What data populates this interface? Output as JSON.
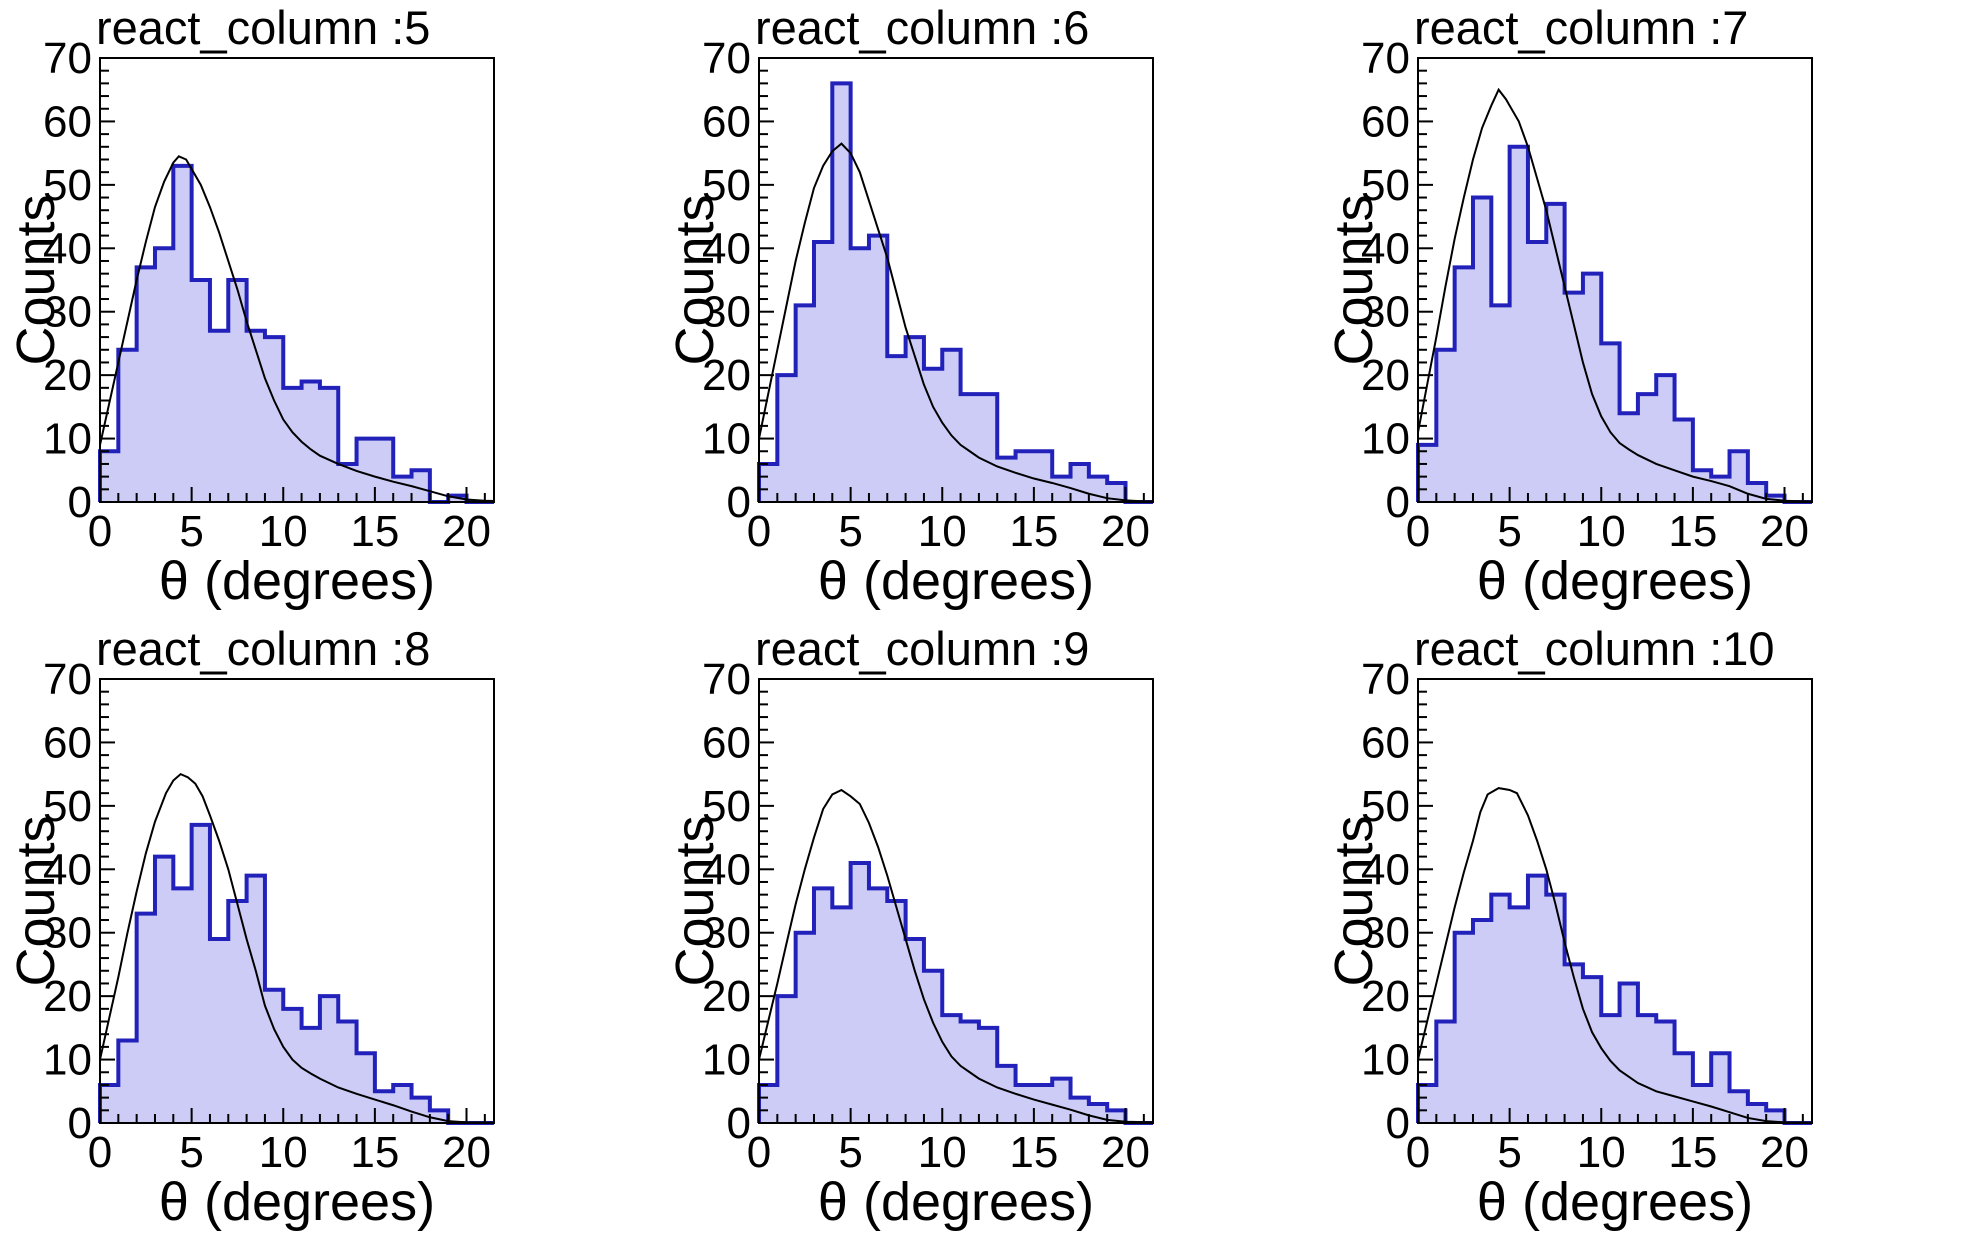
{
  "figure": {
    "description": "Grid of six angular-distribution histograms with overlaid simulation curves",
    "background": "#ffffff",
    "rows": 2,
    "cols": 3
  },
  "styles": {
    "hist_fill": "#ccccf6",
    "hist_stroke": "#2222bb",
    "curve_color": "#000000",
    "frame_color": "#000000",
    "text_color": "#000000"
  },
  "axes": {
    "x_label": "θ (degrees)",
    "y_label": "Counts",
    "x_ticks": [
      0,
      5,
      10,
      15,
      20
    ],
    "x_minor_step": 1,
    "x_range": [
      0,
      21.5
    ],
    "y_ticks": [
      0,
      10,
      20,
      30,
      40,
      50,
      60,
      70
    ],
    "y_minor_step": 2,
    "y_range": [
      0,
      70
    ],
    "grid": false
  },
  "chart_data": [
    {
      "type": "bar",
      "title": "react_column :5",
      "xlabel": "θ (degrees)",
      "ylabel": "Counts",
      "ylim": [
        0,
        70
      ],
      "bin_start": 0,
      "bin_width": 1,
      "values": [
        8,
        24,
        37,
        40,
        53,
        35,
        27,
        35,
        27,
        26,
        18,
        19,
        18,
        6,
        10,
        10,
        4,
        5,
        0,
        1,
        0
      ],
      "curve": [
        [
          0,
          9
        ],
        [
          0.5,
          15.5
        ],
        [
          1,
          22
        ],
        [
          1.5,
          28.5
        ],
        [
          2,
          35
        ],
        [
          2.5,
          41
        ],
        [
          3,
          46.5
        ],
        [
          3.5,
          50.5
        ],
        [
          4,
          53.5
        ],
        [
          4.3,
          54.5
        ],
        [
          4.7,
          54
        ],
        [
          5,
          52.5
        ],
        [
          5.5,
          50
        ],
        [
          6,
          46.5
        ],
        [
          6.5,
          42.5
        ],
        [
          7,
          38
        ],
        [
          7.5,
          33.5
        ],
        [
          8,
          28.5
        ],
        [
          8.5,
          24
        ],
        [
          9,
          19.5
        ],
        [
          9.5,
          16
        ],
        [
          10,
          13
        ],
        [
          10.5,
          11
        ],
        [
          11,
          9.5
        ],
        [
          11.5,
          8.3
        ],
        [
          12,
          7.3
        ],
        [
          13,
          6
        ],
        [
          14,
          4.9
        ],
        [
          15,
          4
        ],
        [
          16,
          3.2
        ],
        [
          17,
          2.5
        ],
        [
          18,
          1.7
        ],
        [
          19,
          0.9
        ],
        [
          20,
          0.4
        ],
        [
          21,
          0.2
        ],
        [
          21.5,
          0.15
        ]
      ]
    },
    {
      "type": "bar",
      "title": "react_column :6",
      "xlabel": "θ (degrees)",
      "ylabel": "Counts",
      "ylim": [
        0,
        70
      ],
      "bin_start": 0,
      "bin_width": 1,
      "values": [
        6,
        20,
        31,
        41,
        66,
        40,
        42,
        23,
        26,
        21,
        24,
        17,
        17,
        7,
        8,
        8,
        4,
        6,
        4,
        3,
        0
      ],
      "curve": [
        [
          0,
          10
        ],
        [
          0.5,
          17
        ],
        [
          1,
          24
        ],
        [
          1.5,
          31
        ],
        [
          2,
          38
        ],
        [
          2.5,
          44
        ],
        [
          3,
          49.5
        ],
        [
          3.5,
          53
        ],
        [
          4,
          55.3
        ],
        [
          4.5,
          56.5
        ],
        [
          5,
          55
        ],
        [
          5.5,
          52
        ],
        [
          6,
          47.5
        ],
        [
          6.5,
          43
        ],
        [
          7,
          38.5
        ],
        [
          7.5,
          33
        ],
        [
          8,
          27.5
        ],
        [
          8.5,
          23
        ],
        [
          9,
          18.5
        ],
        [
          9.5,
          15
        ],
        [
          10,
          12.5
        ],
        [
          10.5,
          10.5
        ],
        [
          11,
          9
        ],
        [
          11.5,
          8
        ],
        [
          12,
          7
        ],
        [
          13,
          5.6
        ],
        [
          14,
          4.6
        ],
        [
          15,
          3.7
        ],
        [
          16,
          3
        ],
        [
          17,
          2.2
        ],
        [
          18,
          1.3
        ],
        [
          19,
          0.6
        ],
        [
          20,
          0.25
        ],
        [
          21,
          0.1
        ],
        [
          21.5,
          0.1
        ]
      ]
    },
    {
      "type": "bar",
      "title": "react_column :7",
      "xlabel": "θ (degrees)",
      "ylabel": "Counts",
      "ylim": [
        0,
        70
      ],
      "bin_start": 0,
      "bin_width": 1,
      "values": [
        9,
        24,
        37,
        48,
        31,
        56,
        41,
        47,
        33,
        36,
        25,
        14,
        17,
        20,
        13,
        5,
        4,
        8,
        3,
        1,
        0
      ],
      "curve": [
        [
          0,
          11
        ],
        [
          0.5,
          18.5
        ],
        [
          1,
          26
        ],
        [
          1.5,
          34
        ],
        [
          2,
          41.5
        ],
        [
          2.5,
          48
        ],
        [
          3,
          54
        ],
        [
          3.5,
          59
        ],
        [
          4,
          62.5
        ],
        [
          4.4,
          65
        ],
        [
          4.8,
          63.5
        ],
        [
          5,
          62.5
        ],
        [
          5.5,
          60
        ],
        [
          6,
          56
        ],
        [
          6.5,
          51
        ],
        [
          7,
          46
        ],
        [
          7.5,
          40
        ],
        [
          8,
          34
        ],
        [
          8.5,
          28
        ],
        [
          9,
          22
        ],
        [
          9.5,
          17
        ],
        [
          10,
          13.5
        ],
        [
          10.5,
          11
        ],
        [
          11,
          9.3
        ],
        [
          11.5,
          8.3
        ],
        [
          12,
          7.4
        ],
        [
          13,
          6
        ],
        [
          14,
          5
        ],
        [
          15,
          4
        ],
        [
          16,
          3.3
        ],
        [
          17,
          2.5
        ],
        [
          18,
          1.3
        ],
        [
          19,
          0.5
        ],
        [
          20,
          0.2
        ],
        [
          21,
          0.1
        ],
        [
          21.5,
          0.1
        ]
      ]
    },
    {
      "type": "bar",
      "title": "react_column :8",
      "xlabel": "θ (degrees)",
      "ylabel": "Counts",
      "ylim": [
        0,
        70
      ],
      "bin_start": 0,
      "bin_width": 1,
      "values": [
        6,
        13,
        33,
        42,
        37,
        47,
        29,
        35,
        39,
        21,
        18,
        15,
        20,
        16,
        11,
        5,
        6,
        4,
        2,
        0,
        0
      ],
      "curve": [
        [
          0,
          10
        ],
        [
          0.5,
          16.5
        ],
        [
          1,
          23
        ],
        [
          1.5,
          30
        ],
        [
          2,
          36.5
        ],
        [
          2.5,
          42.5
        ],
        [
          3,
          47.5
        ],
        [
          3.6,
          52
        ],
        [
          4,
          54
        ],
        [
          4.4,
          55
        ],
        [
          4.8,
          54.5
        ],
        [
          5.2,
          53.5
        ],
        [
          5.6,
          51.5
        ],
        [
          6,
          48.5
        ],
        [
          6.5,
          44.5
        ],
        [
          7,
          40
        ],
        [
          7.5,
          34.5
        ],
        [
          8,
          29
        ],
        [
          8.5,
          24
        ],
        [
          9,
          18.5
        ],
        [
          9.5,
          14.8
        ],
        [
          10,
          12
        ],
        [
          10.5,
          10
        ],
        [
          11,
          8.7
        ],
        [
          11.5,
          7.8
        ],
        [
          12,
          7
        ],
        [
          13,
          5.6
        ],
        [
          14,
          4.6
        ],
        [
          15,
          3.7
        ],
        [
          16,
          2.8
        ],
        [
          17,
          1.8
        ],
        [
          18,
          0.9
        ],
        [
          19,
          0.3
        ],
        [
          20,
          0.1
        ],
        [
          21.5,
          0.05
        ]
      ]
    },
    {
      "type": "bar",
      "title": "react_column :9",
      "xlabel": "θ (degrees)",
      "ylabel": "Counts",
      "ylim": [
        0,
        70
      ],
      "bin_start": 0,
      "bin_width": 1,
      "values": [
        6,
        20,
        30,
        37,
        34,
        41,
        37,
        35,
        29,
        24,
        17,
        16,
        15,
        9,
        6,
        6,
        7,
        4,
        3,
        2,
        0
      ],
      "curve": [
        [
          0,
          10
        ],
        [
          0.5,
          16
        ],
        [
          1,
          22
        ],
        [
          1.5,
          28.3
        ],
        [
          2,
          34.5
        ],
        [
          2.5,
          40
        ],
        [
          3,
          45
        ],
        [
          3.5,
          49.5
        ],
        [
          4,
          51.8
        ],
        [
          4.5,
          52.5
        ],
        [
          5,
          51.5
        ],
        [
          5.5,
          50.3
        ],
        [
          6,
          47.3
        ],
        [
          6.5,
          43.5
        ],
        [
          7,
          39
        ],
        [
          7.5,
          34
        ],
        [
          8,
          29
        ],
        [
          8.5,
          24
        ],
        [
          9,
          19.5
        ],
        [
          9.5,
          15.8
        ],
        [
          10,
          12.8
        ],
        [
          10.5,
          10.5
        ],
        [
          11,
          9
        ],
        [
          11.5,
          8
        ],
        [
          12,
          7
        ],
        [
          13,
          5.6
        ],
        [
          14,
          4.6
        ],
        [
          15,
          3.7
        ],
        [
          16,
          2.9
        ],
        [
          17,
          2.1
        ],
        [
          18,
          1.2
        ],
        [
          19,
          0.5
        ],
        [
          20,
          0.2
        ],
        [
          21.5,
          0.1
        ]
      ]
    },
    {
      "type": "bar",
      "title": "react_column :10",
      "xlabel": "θ (degrees)",
      "ylabel": "Counts",
      "ylim": [
        0,
        70
      ],
      "bin_start": 0,
      "bin_width": 1,
      "values": [
        6,
        16,
        30,
        32,
        36,
        34,
        39,
        36,
        25,
        23,
        17,
        22,
        17,
        16,
        11,
        6,
        11,
        5,
        3,
        2,
        0
      ],
      "curve": [
        [
          0,
          10
        ],
        [
          0.5,
          16
        ],
        [
          1,
          22
        ],
        [
          1.5,
          28
        ],
        [
          2,
          34
        ],
        [
          2.5,
          39.5
        ],
        [
          3,
          44.5
        ],
        [
          3.4,
          49
        ],
        [
          3.8,
          51.8
        ],
        [
          4.4,
          52.8
        ],
        [
          5,
          52.5
        ],
        [
          5.4,
          52
        ],
        [
          6,
          48.5
        ],
        [
          6.5,
          44.5
        ],
        [
          7,
          40
        ],
        [
          7.5,
          34.5
        ],
        [
          8,
          28.5
        ],
        [
          8.5,
          23
        ],
        [
          9,
          18
        ],
        [
          9.5,
          14.3
        ],
        [
          10,
          11.8
        ],
        [
          10.5,
          9.8
        ],
        [
          11,
          8.3
        ],
        [
          12,
          6.3
        ],
        [
          13,
          5
        ],
        [
          14,
          4.2
        ],
        [
          15,
          3.4
        ],
        [
          16,
          2.6
        ],
        [
          17,
          1.7
        ],
        [
          18,
          0.8
        ],
        [
          19,
          0.3
        ],
        [
          20,
          0.1
        ],
        [
          21.5,
          0.05
        ]
      ]
    }
  ]
}
